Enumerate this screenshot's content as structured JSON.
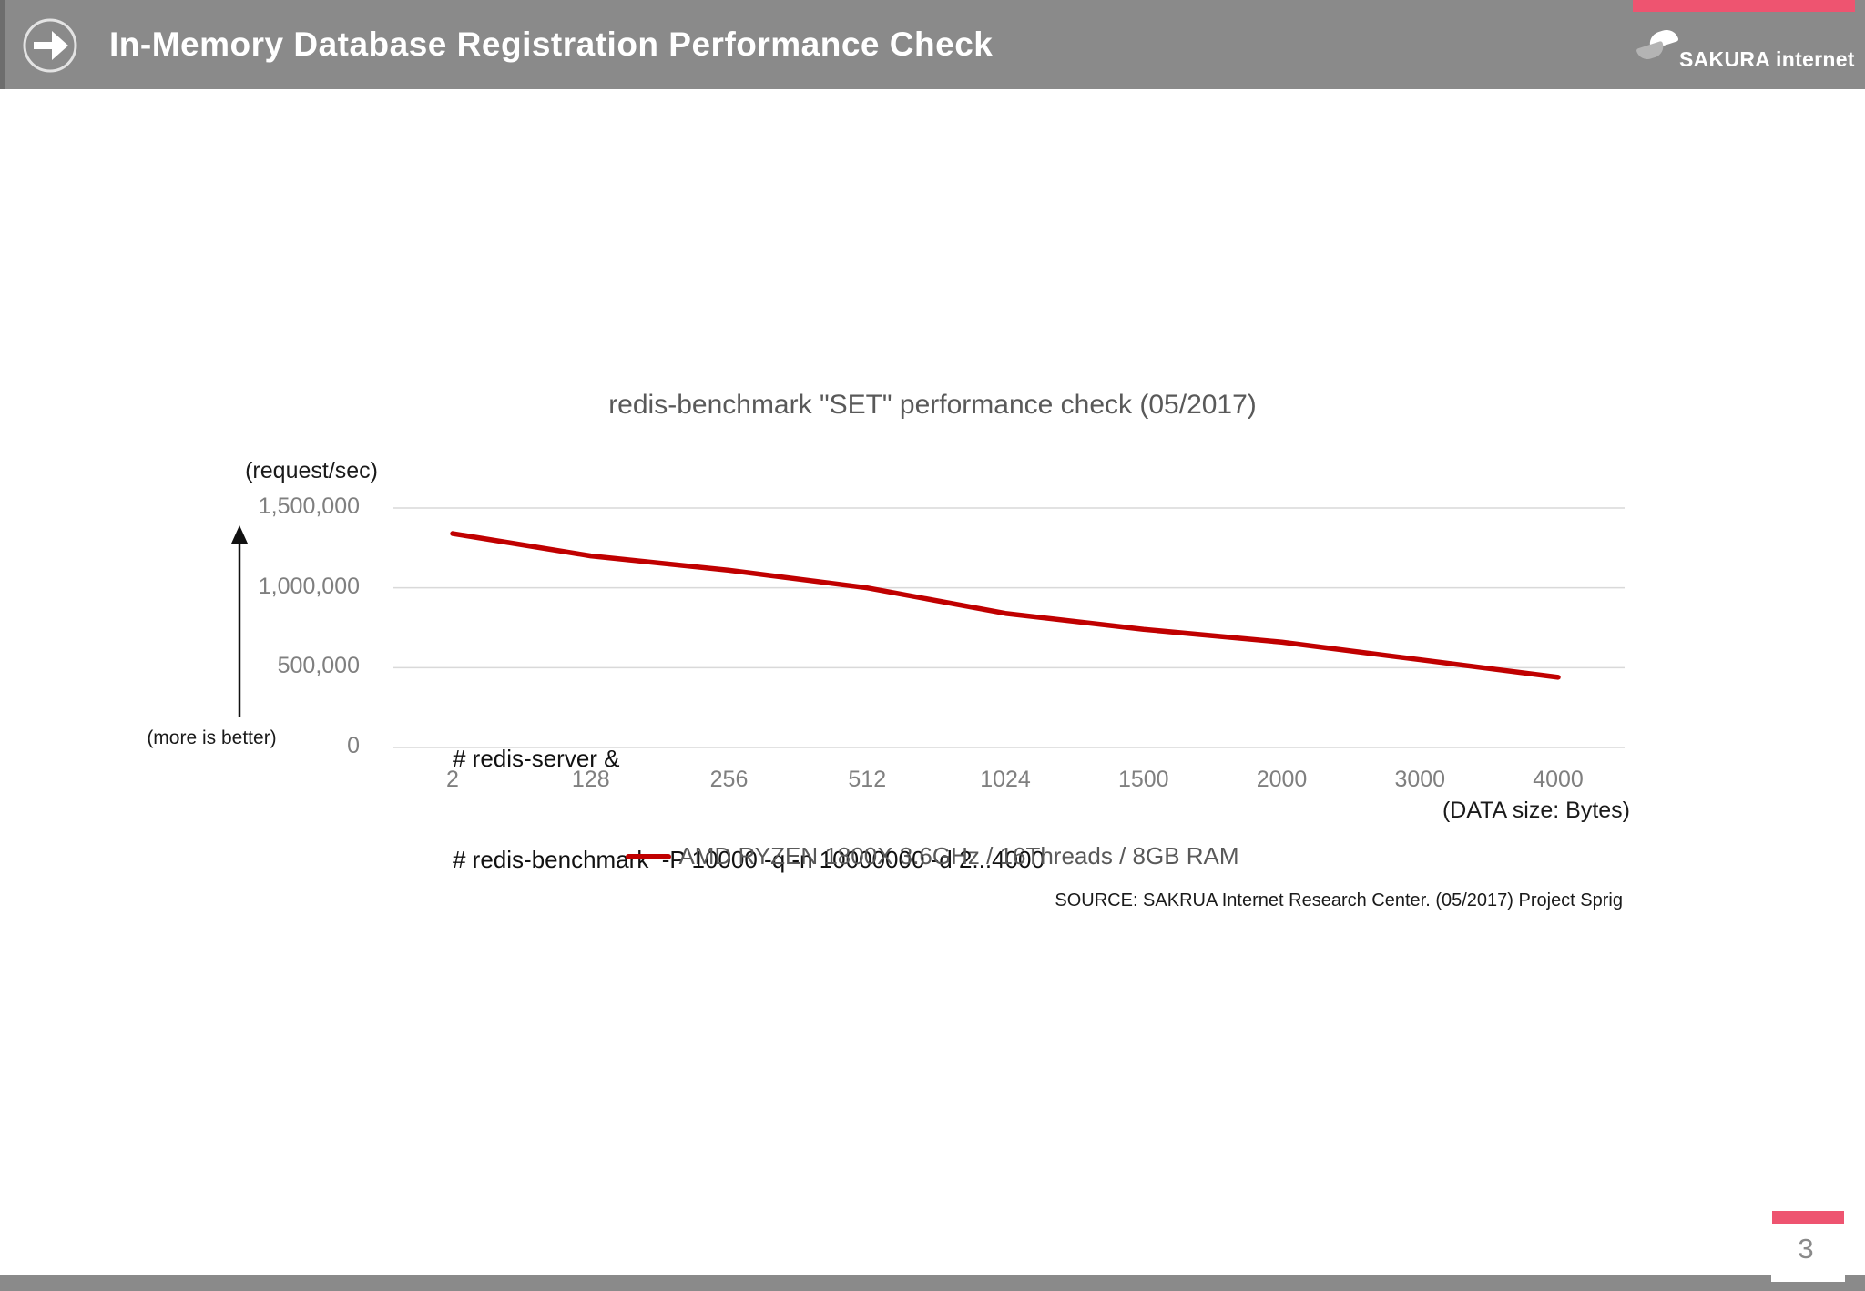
{
  "header": {
    "title": "In-Memory Database Registration Performance Check",
    "logo_text": "SAKURA internet",
    "accent_color": "#ee5470",
    "arrow_icon": "right-arrow-in-circle"
  },
  "chart_data": {
    "type": "line",
    "title": "redis-benchmark \"SET\" performance check (05/2017)",
    "y_axis_label": "(request/sec)",
    "x_axis_label": "(DATA size: Bytes)",
    "more_is_better_note": "(more is better)",
    "categories": [
      "2",
      "128",
      "256",
      "512",
      "1024",
      "1500",
      "2000",
      "3000",
      "4000"
    ],
    "series": [
      {
        "name": "AMD RYZEN 1800X 3.6GHz / 16Threads / 8GB RAM",
        "color": "#c00000",
        "values": [
          1340000,
          1200000,
          1110000,
          1000000,
          840000,
          740000,
          660000,
          550000,
          440000
        ]
      }
    ],
    "ylim": [
      0,
      1500000
    ],
    "yticks": [
      0,
      500000,
      1000000,
      1500000
    ],
    "ytick_labels": [
      "0",
      "500,000",
      "1,000,000",
      "1,500,000"
    ],
    "grid": true,
    "legend_position": "bottom",
    "annotation_lines": [
      "# redis-server &",
      "# redis-benchmark  -P 10000 -q -n 10000000 -d 2...4000"
    ]
  },
  "source": "SOURCE: SAKRUA Internet Research Center. (05/2017) Project Sprig",
  "footer": {
    "page_number": "3"
  }
}
